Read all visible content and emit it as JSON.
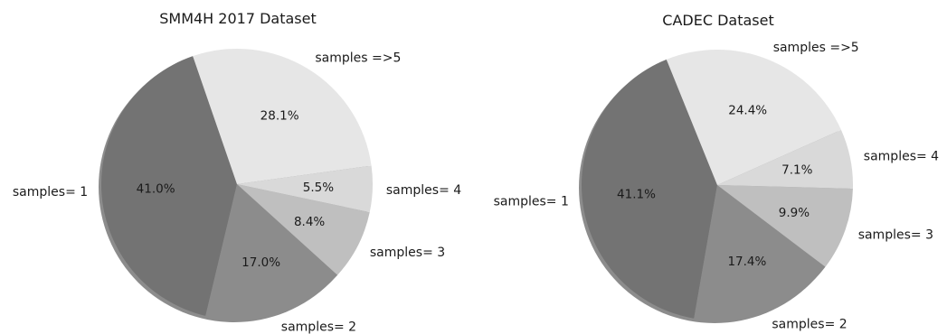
{
  "chart_data": [
    {
      "type": "pie",
      "title": "SMM4H 2017 Dataset",
      "categories": [
        "samples= 1",
        "samples= 2",
        "samples= 3",
        "samples= 4",
        "samples =>5"
      ],
      "values": [
        41.0,
        17.0,
        8.4,
        5.5,
        28.1
      ],
      "value_labels": [
        "41.0%",
        "17.0%",
        "8.4%",
        "5.5%",
        "28.1%"
      ],
      "colors": [
        "#737373",
        "#8c8c8c",
        "#bfbfbf",
        "#d9d9d9",
        "#e6e6e6"
      ],
      "shadow": true,
      "legend": "none"
    },
    {
      "type": "pie",
      "title": "CADEC Dataset",
      "categories": [
        "samples= 1",
        "samples= 2",
        "samples= 3",
        "samples= 4",
        "samples =>5"
      ],
      "values": [
        41.1,
        17.4,
        9.9,
        7.1,
        24.4
      ],
      "value_labels": [
        "41.1%",
        "17.4%",
        "9.9%",
        "7.1%",
        "24.4%"
      ],
      "colors": [
        "#737373",
        "#8c8c8c",
        "#bfbfbf",
        "#d9d9d9",
        "#e6e6e6"
      ],
      "shadow": true,
      "legend": "none"
    }
  ]
}
